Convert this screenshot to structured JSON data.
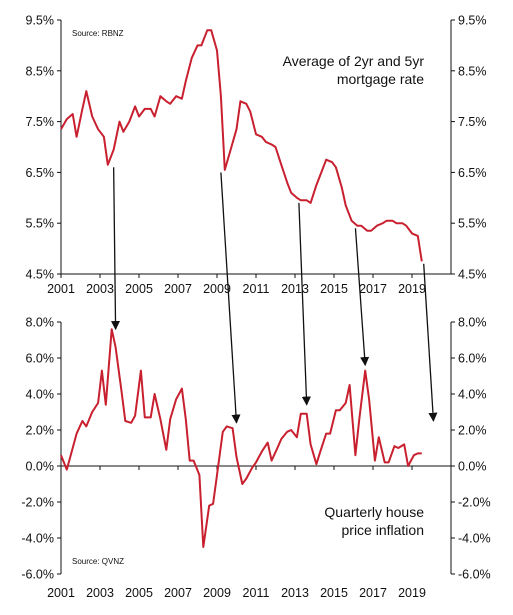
{
  "chart_data": [
    {
      "type": "line",
      "title": "",
      "annotation_lines": [
        "Average of 2yr and 5yr",
        "mortgage rate"
      ],
      "source": "Source: RBNZ",
      "xlabel": "",
      "ylabel": "",
      "color": "#c8202f",
      "x_ticks": [
        "2001",
        "2003",
        "2005",
        "2007",
        "2009",
        "2011",
        "2013",
        "2015",
        "2017",
        "2019"
      ],
      "y_ticks": [
        "9.5%",
        "8.5%",
        "7.5%",
        "6.5%",
        "5.5%",
        "4.5%"
      ],
      "xlim": [
        2001,
        2021
      ],
      "ylim": [
        4.5,
        9.5
      ],
      "grid": false,
      "series": [
        {
          "x": [
            2001.0,
            2001.3,
            2001.6,
            2001.8,
            2002.1,
            2002.3,
            2002.6,
            2002.9,
            2003.2,
            2003.4,
            2003.7,
            2004.0,
            2004.2,
            2004.5,
            2004.8,
            2005.0,
            2005.3,
            2005.6,
            2005.8,
            2006.1,
            2006.4,
            2006.6,
            2006.9,
            2007.2,
            2007.4,
            2007.7,
            2008.0,
            2008.2,
            2008.5,
            2008.7,
            2009.0,
            2009.2,
            2009.4,
            2009.7,
            2010.0,
            2010.2,
            2010.5,
            2010.7,
            2011.0,
            2011.3,
            2011.5,
            2011.8,
            2012.0,
            2012.3,
            2012.6,
            2012.8,
            2013.1,
            2013.3,
            2013.6,
            2013.8,
            2014.1,
            2014.4,
            2014.6,
            2014.9,
            2015.1,
            2015.4,
            2015.6,
            2015.9,
            2016.2,
            2016.4,
            2016.7,
            2016.9,
            2017.2,
            2017.5,
            2017.7,
            2018.0,
            2018.2,
            2018.5,
            2018.7,
            2019.0,
            2019.3,
            2019.5
          ],
          "y": [
            7.35,
            7.55,
            7.65,
            7.2,
            7.75,
            8.1,
            7.6,
            7.35,
            7.2,
            6.65,
            6.95,
            7.5,
            7.3,
            7.5,
            7.8,
            7.6,
            7.75,
            7.75,
            7.6,
            8.0,
            7.9,
            7.85,
            8.0,
            7.95,
            8.3,
            8.75,
            9.0,
            9.0,
            9.3,
            9.3,
            8.9,
            8.0,
            6.55,
            6.95,
            7.35,
            7.9,
            7.85,
            7.7,
            7.25,
            7.2,
            7.1,
            7.05,
            7.0,
            6.65,
            6.3,
            6.1,
            6.0,
            5.95,
            5.95,
            5.9,
            6.25,
            6.55,
            6.75,
            6.7,
            6.6,
            6.2,
            5.85,
            5.55,
            5.45,
            5.45,
            5.35,
            5.35,
            5.45,
            5.5,
            5.55,
            5.55,
            5.5,
            5.5,
            5.45,
            5.3,
            5.25,
            4.75
          ]
        }
      ]
    },
    {
      "type": "line",
      "title": "",
      "annotation_lines": [
        "Quarterly house",
        "price inflation"
      ],
      "source": "Source: QVNZ",
      "xlabel": "",
      "ylabel": "",
      "color": "#c8202f",
      "x_ticks": [
        "2001",
        "2003",
        "2005",
        "2007",
        "2009",
        "2011",
        "2013",
        "2015",
        "2017",
        "2019"
      ],
      "y_ticks": [
        "8.0%",
        "6.0%",
        "4.0%",
        "2.0%",
        "0.0%",
        "-2.0%",
        "-4.0%",
        "-6.0%"
      ],
      "xlim": [
        2001,
        2021
      ],
      "ylim": [
        -6.0,
        8.0
      ],
      "grid": false,
      "series": [
        {
          "x": [
            2001.0,
            2001.3,
            2001.6,
            2001.8,
            2002.1,
            2002.3,
            2002.6,
            2002.9,
            2003.1,
            2003.3,
            2003.6,
            2003.8,
            2004.1,
            2004.3,
            2004.6,
            2004.8,
            2005.1,
            2005.3,
            2005.6,
            2005.8,
            2006.1,
            2006.4,
            2006.6,
            2006.9,
            2007.2,
            2007.4,
            2007.6,
            2007.8,
            2008.1,
            2008.3,
            2008.6,
            2008.8,
            2009.0,
            2009.3,
            2009.5,
            2009.8,
            2010.0,
            2010.3,
            2010.5,
            2010.8,
            2011.0,
            2011.3,
            2011.6,
            2011.8,
            2012.1,
            2012.3,
            2012.6,
            2012.8,
            2013.1,
            2013.3,
            2013.6,
            2013.8,
            2014.1,
            2014.3,
            2014.6,
            2014.8,
            2015.1,
            2015.3,
            2015.6,
            2015.8,
            2016.1,
            2016.3,
            2016.6,
            2016.8,
            2017.1,
            2017.3,
            2017.6,
            2017.8,
            2018.1,
            2018.3,
            2018.6,
            2018.8,
            2019.1,
            2019.3,
            2019.5
          ],
          "y": [
            0.6,
            -0.2,
            1.0,
            1.8,
            2.5,
            2.2,
            3.0,
            3.5,
            5.3,
            3.4,
            7.6,
            6.6,
            4.2,
            2.5,
            2.4,
            2.8,
            5.3,
            2.7,
            2.7,
            4.0,
            2.6,
            0.9,
            2.6,
            3.7,
            4.3,
            2.6,
            0.3,
            0.3,
            -0.5,
            -4.5,
            -2.2,
            -2.1,
            -0.5,
            1.9,
            2.2,
            2.1,
            0.5,
            -1.0,
            -0.7,
            -0.1,
            0.2,
            0.8,
            1.3,
            0.3,
            1.0,
            1.5,
            1.9,
            2.0,
            1.6,
            2.9,
            2.9,
            1.2,
            0.1,
            0.8,
            1.8,
            1.8,
            3.1,
            3.1,
            3.5,
            4.5,
            0.6,
            2.6,
            5.3,
            3.7,
            0.3,
            1.6,
            0.2,
            0.2,
            1.1,
            1.0,
            1.2,
            0.0,
            0.6,
            0.7,
            0.7
          ]
        }
      ]
    }
  ],
  "arrows": [
    {
      "from": [
        2003.7,
        6.6
      ],
      "to": [
        2003.8,
        7.6
      ]
    },
    {
      "from": [
        2009.2,
        6.5
      ],
      "to": [
        2010.0,
        2.4
      ]
    },
    {
      "from": [
        2013.2,
        5.9
      ],
      "to": [
        2013.6,
        3.4
      ]
    },
    {
      "from": [
        2016.1,
        5.4
      ],
      "to": [
        2016.6,
        5.6
      ]
    },
    {
      "from": [
        2019.6,
        4.7
      ],
      "to": [
        2020.1,
        2.5
      ]
    }
  ]
}
